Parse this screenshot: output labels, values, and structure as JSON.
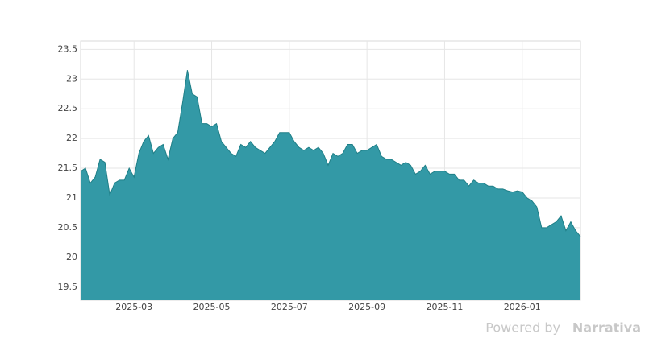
{
  "chart_data": {
    "type": "area",
    "categories": [
      null,
      null,
      null,
      null,
      null,
      null,
      null,
      null,
      null,
      null,
      null,
      "2025-03",
      null,
      null,
      null,
      null,
      null,
      null,
      null,
      null,
      null,
      null,
      null,
      null,
      null,
      null,
      null,
      "2025-05",
      null,
      null,
      null,
      null,
      null,
      null,
      null,
      null,
      null,
      null,
      null,
      null,
      null,
      null,
      null,
      "2025-07",
      null,
      null,
      null,
      null,
      null,
      null,
      null,
      null,
      null,
      null,
      null,
      null,
      null,
      null,
      null,
      "2025-09",
      null,
      null,
      null,
      null,
      null,
      null,
      null,
      null,
      null,
      null,
      null,
      null,
      null,
      null,
      null,
      "2025-11",
      null,
      null,
      null,
      null,
      null,
      null,
      null,
      null,
      null,
      null,
      null,
      null,
      null,
      null,
      null,
      "2026-01",
      null,
      null,
      null,
      null,
      null,
      null,
      null,
      null,
      null,
      null,
      null,
      null
    ],
    "values": [
      21.45,
      21.5,
      21.25,
      21.35,
      21.65,
      21.6,
      21.05,
      21.25,
      21.3,
      21.3,
      21.5,
      21.35,
      21.75,
      21.95,
      22.05,
      21.75,
      21.85,
      21.9,
      21.65,
      22.0,
      22.1,
      22.6,
      23.15,
      22.75,
      22.7,
      22.25,
      22.25,
      22.2,
      22.25,
      21.95,
      21.85,
      21.75,
      21.7,
      21.9,
      21.85,
      21.95,
      21.85,
      21.8,
      21.75,
      21.85,
      21.95,
      22.1,
      22.1,
      22.1,
      21.95,
      21.85,
      21.8,
      21.85,
      21.8,
      21.85,
      21.75,
      21.55,
      21.75,
      21.7,
      21.75,
      21.9,
      21.9,
      21.75,
      21.8,
      21.8,
      21.85,
      21.9,
      21.7,
      21.65,
      21.65,
      21.6,
      21.55,
      21.6,
      21.55,
      21.4,
      21.45,
      21.55,
      21.4,
      21.45,
      21.45,
      21.45,
      21.4,
      21.4,
      21.3,
      21.3,
      21.2,
      21.3,
      21.25,
      21.25,
      21.2,
      21.2,
      21.15,
      21.15,
      21.12,
      21.1,
      21.12,
      21.1,
      21.0,
      20.95,
      20.85,
      20.5,
      20.5,
      20.55,
      20.6,
      20.7,
      20.45,
      20.6,
      20.45,
      20.35
    ],
    "color": "#3399a6",
    "line_color": "#1f7f87",
    "ylim": [
      19.28,
      23.64
    ],
    "yticks": [
      19.5,
      20.0,
      20.5,
      21.0,
      21.5,
      22.0,
      22.5,
      23.0,
      23.5
    ],
    "grid": true
  },
  "watermark": {
    "prefix": "Powered by",
    "brand": "Narrativa"
  }
}
